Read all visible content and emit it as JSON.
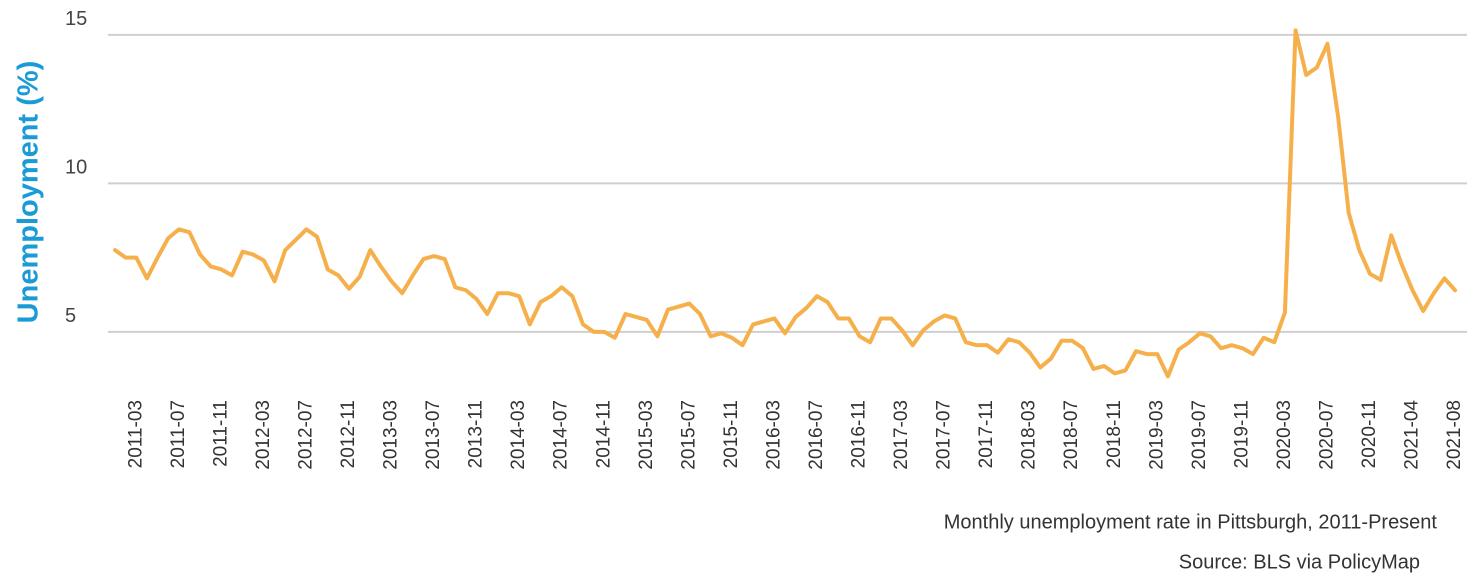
{
  "chart_data": {
    "type": "line",
    "y_label": "Unemployment (%)",
    "caption": "Monthly unemployment rate in Pittsburgh, 2011-Present",
    "source": "Source: BLS via PolicyMap",
    "color": "#f5b04b",
    "grid": true,
    "ylim": [
      3.3,
      15.5
    ],
    "yticks": [
      5,
      10,
      15
    ],
    "categories": [
      null,
      null,
      "2011-03",
      null,
      null,
      null,
      "2011-07",
      null,
      null,
      null,
      "2011-11",
      null,
      null,
      null,
      "2012-03",
      null,
      null,
      null,
      "2012-07",
      null,
      null,
      null,
      "2012-11",
      null,
      null,
      null,
      "2013-03",
      null,
      null,
      null,
      "2013-07",
      null,
      null,
      null,
      "2013-11",
      null,
      null,
      null,
      "2014-03",
      null,
      null,
      null,
      "2014-07",
      null,
      null,
      null,
      "2014-11",
      null,
      null,
      null,
      "2015-03",
      null,
      null,
      null,
      "2015-07",
      null,
      null,
      null,
      "2015-11",
      null,
      null,
      null,
      "2016-03",
      null,
      null,
      null,
      "2016-07",
      null,
      null,
      null,
      "2016-11",
      null,
      null,
      null,
      "2017-03",
      null,
      null,
      null,
      "2017-07",
      null,
      null,
      null,
      "2017-11",
      null,
      null,
      null,
      "2018-03",
      null,
      null,
      null,
      "2018-07",
      null,
      null,
      null,
      "2018-11",
      null,
      null,
      null,
      "2019-03",
      null,
      null,
      null,
      "2019-07",
      null,
      null,
      null,
      "2019-11",
      null,
      null,
      null,
      "2020-03",
      null,
      null,
      null,
      "2020-07",
      null,
      null,
      null,
      "2020-11",
      null,
      null,
      null,
      "2021-04",
      null,
      null,
      null,
      "2021-08"
    ],
    "values": [
      7.75,
      7.5,
      7.5,
      6.8,
      7.5,
      8.15,
      8.45,
      8.35,
      7.6,
      7.2,
      7.1,
      6.9,
      7.7,
      7.6,
      7.4,
      6.7,
      7.75,
      8.1,
      8.45,
      8.2,
      7.1,
      6.9,
      6.45,
      6.85,
      7.75,
      7.2,
      6.7,
      6.3,
      6.9,
      7.45,
      7.55,
      7.45,
      6.5,
      6.4,
      6.1,
      5.6,
      6.3,
      6.3,
      6.2,
      5.25,
      6.0,
      6.2,
      6.5,
      6.2,
      5.25,
      5.0,
      5.0,
      4.8,
      5.6,
      5.5,
      5.4,
      4.85,
      5.75,
      5.85,
      5.95,
      5.6,
      4.85,
      4.95,
      4.8,
      4.55,
      5.25,
      5.35,
      5.45,
      4.95,
      5.5,
      5.8,
      6.2,
      6.0,
      5.45,
      5.45,
      4.85,
      4.65,
      5.45,
      5.45,
      5.05,
      4.55,
      5.05,
      5.35,
      5.55,
      5.45,
      4.65,
      4.55,
      4.55,
      4.3,
      4.75,
      4.65,
      4.3,
      3.8,
      4.1,
      4.7,
      4.7,
      4.45,
      3.75,
      3.85,
      3.6,
      3.7,
      4.35,
      4.25,
      4.25,
      3.5,
      4.4,
      4.65,
      4.95,
      4.85,
      4.45,
      4.55,
      4.45,
      4.25,
      4.8,
      4.65,
      5.65,
      15.15,
      13.65,
      13.9,
      14.7,
      12.25,
      9.0,
      7.75,
      6.95,
      6.75,
      8.25,
      7.25,
      6.4,
      5.7,
      6.3,
      6.8,
      6.4
    ]
  }
}
